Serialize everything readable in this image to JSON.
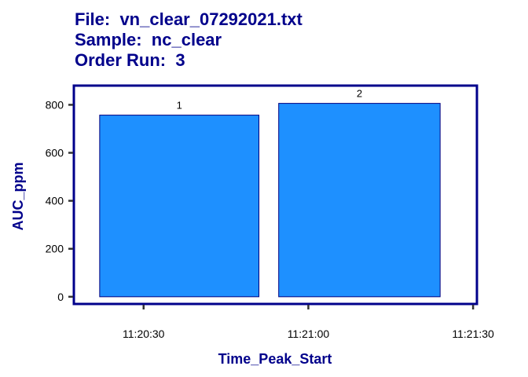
{
  "chart_data": {
    "type": "bar",
    "title_lines": [
      "File:  vn_clear_07292021.txt",
      "Sample:  nc_clear",
      "Order Run:  3"
    ],
    "xlabel": "Time_Peak_Start",
    "ylabel": "AUC_ppm",
    "ylim": [
      -30,
      880
    ],
    "yticks": [
      0,
      200,
      400,
      600,
      800
    ],
    "xticks": [
      "11:20:30",
      "11:21:00",
      "11:21:30"
    ],
    "xtick_seconds": [
      30,
      60,
      90
    ],
    "xlim_seconds": [
      17.3,
      90.7
    ],
    "bars": [
      {
        "label": "1",
        "start_seconds": 22.0,
        "end_seconds": 51.0,
        "value": 757
      },
      {
        "label": "2",
        "start_seconds": 54.6,
        "end_seconds": 84.0,
        "value": 806
      }
    ],
    "grid": false,
    "colors": {
      "bar_fill": "#1E90FF",
      "bar_stroke": "#000080",
      "frame": "#00008B",
      "title": "#00008B",
      "axis_label": "#00008B"
    }
  }
}
